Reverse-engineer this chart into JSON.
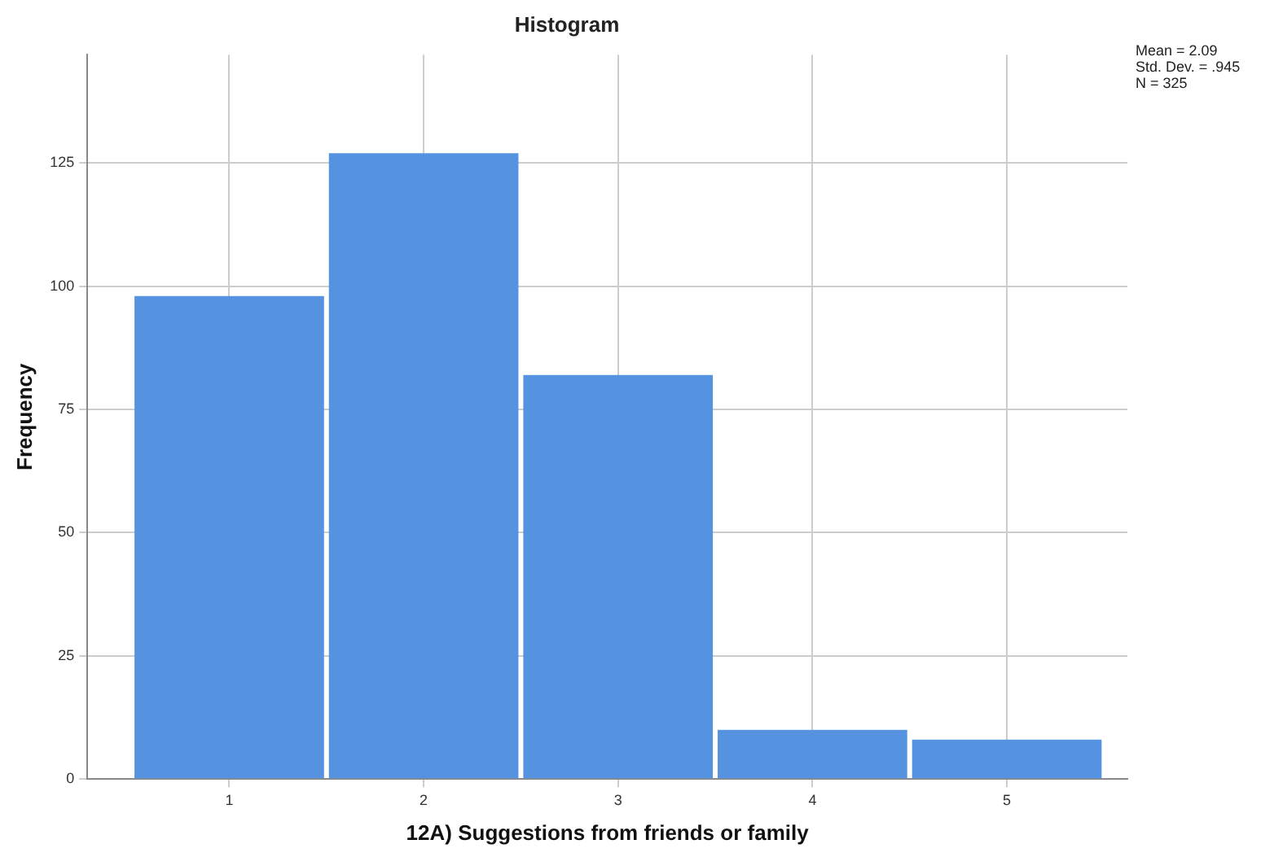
{
  "chart_data": {
    "type": "histogram",
    "title": "Histogram",
    "xlabel": "12A) Suggestions from friends or family",
    "ylabel": "Frequency",
    "bins": [
      0.5,
      1.5,
      2.5,
      3.5,
      4.5,
      5.5
    ],
    "values": [
      98,
      127,
      82,
      10,
      8
    ],
    "color": "#5592e0",
    "xlim": [
      0.27,
      5.62
    ],
    "xticks": [
      1,
      2,
      3,
      4,
      5
    ],
    "ylim": [
      0,
      147
    ],
    "yticks": [
      0,
      25,
      50,
      75,
      100,
      125
    ],
    "grid": true,
    "legend": false,
    "annotations": [
      "Mean = 2.09",
      "Std. Dev. = .945",
      "N = 325"
    ]
  }
}
